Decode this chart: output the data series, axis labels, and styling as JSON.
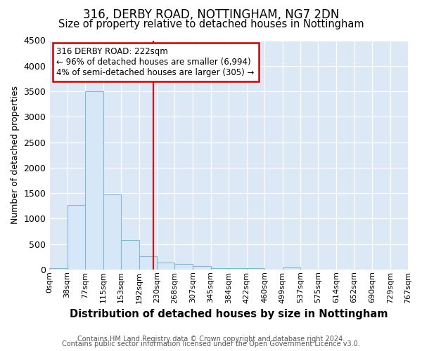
{
  "title1": "316, DERBY ROAD, NOTTINGHAM, NG7 2DN",
  "title2": "Size of property relative to detached houses in Nottingham",
  "xlabel": "Distribution of detached houses by size in Nottingham",
  "ylabel": "Number of detached properties",
  "footnote1": "Contains HM Land Registry data © Crown copyright and database right 2024.",
  "footnote2": "Contains public sector information licensed under the Open Government Licence v3.0.",
  "bin_edges": [
    0,
    38,
    77,
    115,
    153,
    192,
    230,
    268,
    307,
    345,
    384,
    422,
    460,
    499,
    537,
    575,
    614,
    652,
    690,
    729,
    767
  ],
  "bar_heights": [
    30,
    1270,
    3500,
    1470,
    580,
    255,
    130,
    110,
    60,
    25,
    20,
    30,
    0,
    35,
    3,
    3,
    3,
    0,
    0,
    0
  ],
  "bar_color": "#d6e8f7",
  "bar_edge_color": "#8ab4d4",
  "property_size": 222,
  "vline_color": "#ff0000",
  "annotation_line1": "316 DERBY ROAD: 222sqm",
  "annotation_line2": "← 96% of detached houses are smaller (6,994)",
  "annotation_line3": "4% of semi-detached houses are larger (305) →",
  "annotation_box_color": "#cc0000",
  "ylim": [
    0,
    4500
  ],
  "bg_color": "#ffffff",
  "plot_bg_color": "#dce8f5",
  "title1_fontsize": 12,
  "title2_fontsize": 10.5,
  "xlabel_fontsize": 10.5,
  "ylabel_fontsize": 9,
  "tick_fontsize": 8,
  "footnote_fontsize": 7
}
